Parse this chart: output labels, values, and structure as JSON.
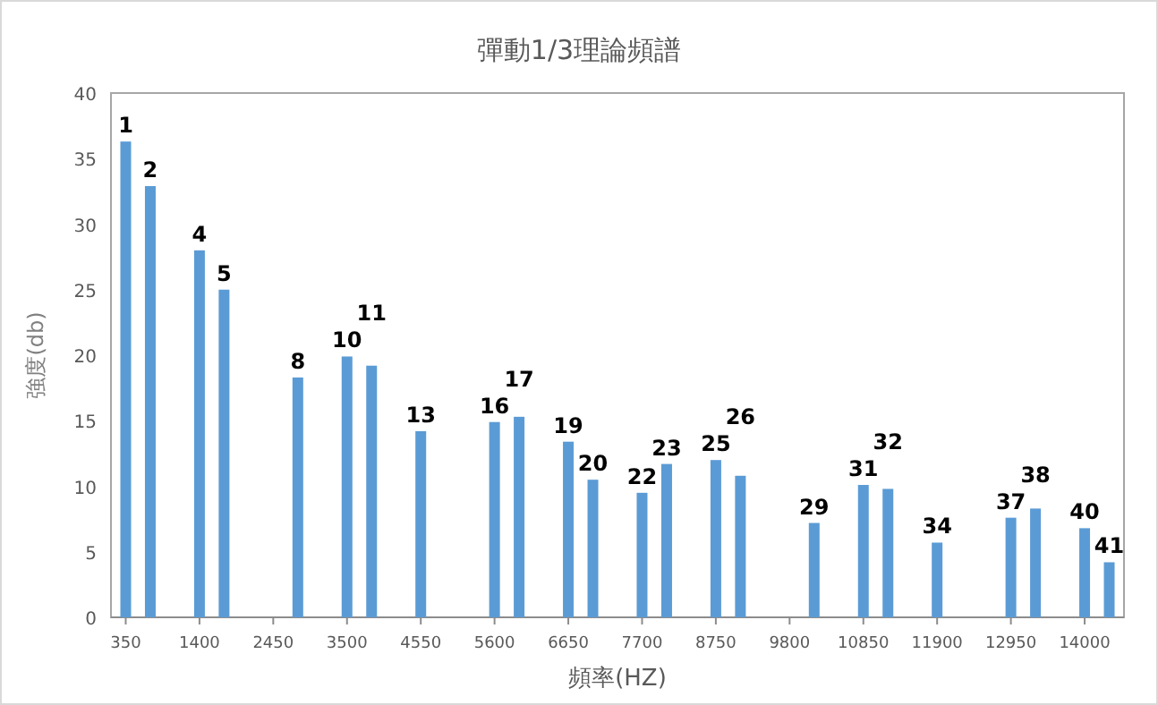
{
  "chart_data": {
    "type": "bar",
    "title": "彈動1/3理論頻譜",
    "xlabel": "頻率(HZ)",
    "ylabel": "強度(db)",
    "color": "#5b9bd5",
    "x": [
      350,
      700,
      1400,
      1750,
      2800,
      3500,
      3850,
      4550,
      5600,
      5950,
      6650,
      7000,
      7700,
      8050,
      8750,
      9100,
      10150,
      10850,
      11200,
      11900,
      12950,
      13300,
      14000,
      14350
    ],
    "values": [
      36.3,
      32.9,
      28.0,
      25.0,
      18.3,
      19.9,
      19.2,
      14.2,
      14.9,
      15.3,
      13.4,
      10.5,
      9.5,
      11.7,
      12.0,
      10.8,
      7.2,
      10.1,
      9.8,
      5.7,
      7.6,
      8.3,
      6.8,
      4.2
    ],
    "annotations": [
      {
        "text": "1",
        "x": 350,
        "y": 36.3
      },
      {
        "text": "2",
        "x": 700,
        "y": 32.9
      },
      {
        "text": "4",
        "x": 1400,
        "y": 28.0
      },
      {
        "text": "5",
        "x": 1750,
        "y": 25.0
      },
      {
        "text": "8",
        "x": 2800,
        "y": 18.3
      },
      {
        "text": "10",
        "x": 3500,
        "y": 19.9
      },
      {
        "text": "11",
        "x": 3850,
        "y": 19.2
      },
      {
        "text": "13",
        "x": 4550,
        "y": 14.2
      },
      {
        "text": "16",
        "x": 5600,
        "y": 14.9
      },
      {
        "text": "17",
        "x": 5950,
        "y": 15.3
      },
      {
        "text": "19",
        "x": 6650,
        "y": 13.4
      },
      {
        "text": "20",
        "x": 7000,
        "y": 10.5
      },
      {
        "text": "22",
        "x": 7700,
        "y": 9.5
      },
      {
        "text": "23",
        "x": 8050,
        "y": 11.7
      },
      {
        "text": "25",
        "x": 8750,
        "y": 12.0
      },
      {
        "text": "26",
        "x": 9100,
        "y": 10.8
      },
      {
        "text": "29",
        "x": 10150,
        "y": 7.2
      },
      {
        "text": "31",
        "x": 10850,
        "y": 10.1
      },
      {
        "text": "32",
        "x": 11200,
        "y": 9.8
      },
      {
        "text": "34",
        "x": 11900,
        "y": 5.7
      },
      {
        "text": "37",
        "x": 12950,
        "y": 7.6
      },
      {
        "text": "38",
        "x": 13300,
        "y": 8.3
      },
      {
        "text": "40",
        "x": 14000,
        "y": 6.8
      },
      {
        "text": "41",
        "x": 14350,
        "y": 4.2
      }
    ],
    "xlim": [
      140,
      14560
    ],
    "xticks": [
      350,
      1400,
      2450,
      3500,
      4550,
      5600,
      6650,
      7700,
      8750,
      9800,
      10850,
      11900,
      12950,
      14000
    ],
    "ylim": [
      0,
      40
    ],
    "yticks": [
      0,
      5,
      10,
      15,
      20,
      25,
      30,
      35,
      40
    ]
  }
}
